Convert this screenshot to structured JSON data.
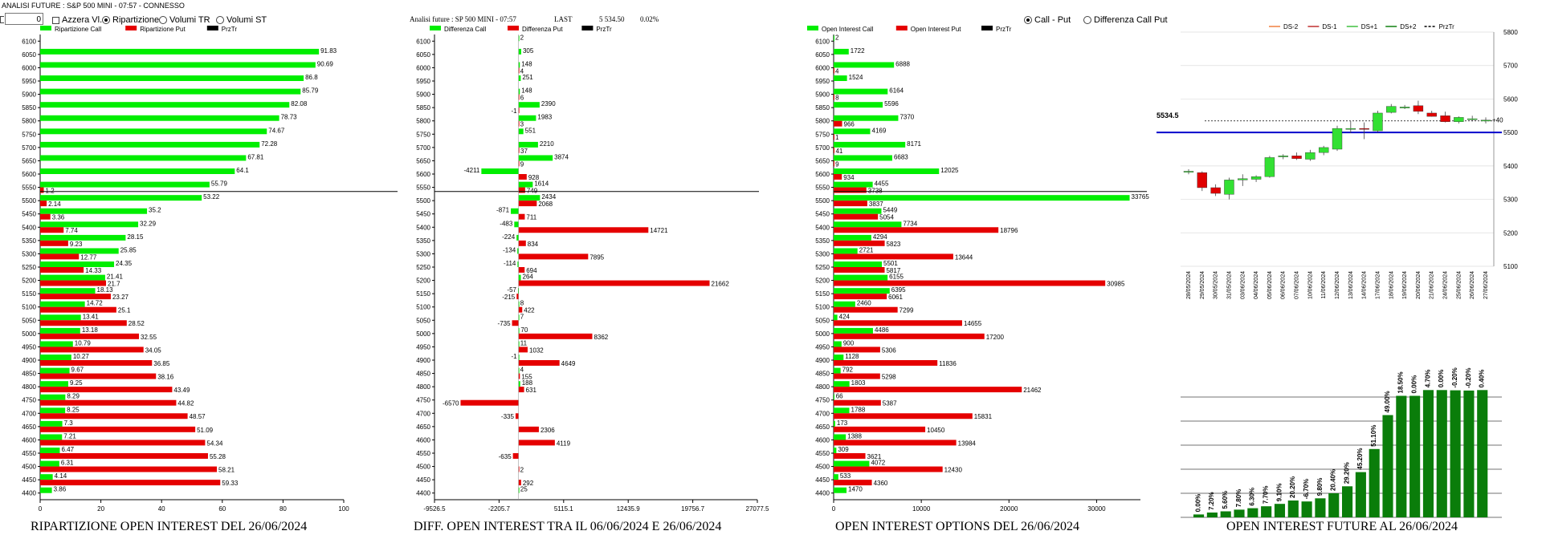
{
  "window": {
    "title": "ANALISI FUTURE : S&P 500 MINI - 07:57 - CONNESSO"
  },
  "controls": {
    "number_value": "0",
    "checkbox_label": "Azzera Vl.",
    "radios": [
      {
        "label": "Ripartizione",
        "selected": true
      },
      {
        "label": "Volumi TR",
        "selected": false
      },
      {
        "label": "Volumi ST",
        "selected": false
      }
    ]
  },
  "panel2": {
    "header_label": "Analisi future : SP 500 MINI - 07:57",
    "last_label": "LAST",
    "last_value": "5 534.50",
    "change": "0.02%"
  },
  "panel3": {
    "radios": [
      {
        "label": "Call - Put",
        "selected": true
      },
      {
        "label": "Differenza Call Put",
        "selected": false
      }
    ]
  },
  "titles": {
    "p1": "RIPARTIZIONE OPEN INTEREST DEL 26/06/2024",
    "p2": "DIFF. OPEN INTEREST TRA IL 06/06/2024 E 26/06/2024",
    "p3": "OPEN INTEREST OPTIONS DEL 26/06/2024",
    "p4": "OPEN INTEREST FUTURE AL 26/06/2024"
  },
  "colors": {
    "call": "#00ee00",
    "put": "#e50000",
    "price": "#000000",
    "dark_green": "#0a7d0a",
    "blue_line": "#0000cc"
  },
  "chart_data": [
    {
      "type": "bar",
      "orientation": "horizontal",
      "legend": [
        "Ripartizione Call",
        "Ripartizione Put",
        "PrzTr"
      ],
      "strikes": [
        6100,
        6050,
        6000,
        5950,
        5900,
        5850,
        5800,
        5750,
        5700,
        5650,
        5600,
        5550,
        5500,
        5450,
        5400,
        5350,
        5300,
        5250,
        5200,
        5150,
        5100,
        5050,
        5000,
        4950,
        4900,
        4850,
        4800,
        4750,
        4700,
        4650,
        4600,
        4550,
        4500,
        4450,
        4400
      ],
      "series": [
        {
          "name": "Ripartizione Call",
          "values": [
            null,
            91.83,
            90.69,
            86.8,
            85.79,
            82.08,
            78.73,
            74.67,
            72.28,
            67.81,
            64.1,
            55.79,
            53.22,
            35.2,
            32.29,
            28.15,
            25.85,
            24.35,
            21.41,
            18.13,
            14.72,
            13.41,
            13.18,
            10.79,
            10.27,
            9.67,
            9.25,
            8.29,
            8.25,
            7.3,
            7.21,
            6.47,
            6.31,
            4.14,
            3.86
          ]
        },
        {
          "name": "Ripartizione Put",
          "values": [
            null,
            null,
            null,
            null,
            null,
            null,
            null,
            null,
            null,
            null,
            null,
            1.2,
            2.14,
            3.36,
            7.74,
            9.23,
            12.77,
            14.33,
            21.7,
            23.27,
            25.1,
            28.52,
            32.55,
            34.05,
            36.85,
            38.16,
            43.49,
            44.82,
            48.57,
            51.09,
            54.34,
            55.28,
            58.21,
            59.33,
            null
          ]
        }
      ],
      "price_level": 5534.5,
      "xlim": [
        0,
        100
      ],
      "xticks": [
        "0",
        "20",
        "40",
        "60",
        "80",
        "100"
      ]
    },
    {
      "type": "bar",
      "orientation": "horizontal",
      "legend": [
        "Differenza Call",
        "Differenza Put",
        "PrzTr"
      ],
      "strikes": [
        6100,
        6050,
        6000,
        5950,
        5900,
        5850,
        5800,
        5750,
        5700,
        5650,
        5600,
        5550,
        5500,
        5450,
        5400,
        5350,
        5300,
        5250,
        5200,
        5150,
        5100,
        5050,
        5000,
        4950,
        4900,
        4850,
        4800,
        4750,
        4700,
        4650,
        4600,
        4550,
        4500,
        4450,
        4400
      ],
      "series": [
        {
          "name": "Differenza Call",
          "values": [
            2,
            305,
            148,
            251,
            148,
            2390,
            1983,
            551,
            2210,
            3874,
            -4211,
            1614,
            2434,
            -871,
            -483,
            -224,
            -134,
            -114,
            264,
            -57,
            8,
            7,
            70,
            11,
            -1,
            4,
            188,
            null,
            null,
            null,
            null,
            null,
            null,
            null,
            25
          ]
        },
        {
          "name": "Differenza Put",
          "values": [
            null,
            null,
            4,
            null,
            6,
            -1,
            3,
            null,
            37,
            9,
            928,
            749,
            2068,
            711,
            14721,
            834,
            7895,
            694,
            21662,
            -215,
            422,
            -735,
            8362,
            1032,
            4649,
            155,
            631,
            -6570,
            -335,
            2306,
            4119,
            -635,
            2,
            292,
            null
          ]
        }
      ],
      "price_level": 5534.5,
      "xlim": [
        -9526.5,
        27077.5
      ],
      "xticks": [
        "-9526.5",
        "-2205.7",
        "5115.1",
        "12435.9",
        "19756.7",
        "27077.5"
      ]
    },
    {
      "type": "bar",
      "orientation": "horizontal",
      "legend": [
        "Open Interest Call",
        "Open Interest Put",
        "PrzTr"
      ],
      "strikes": [
        6100,
        6050,
        6000,
        5950,
        5900,
        5850,
        5800,
        5750,
        5700,
        5650,
        5600,
        5550,
        5500,
        5450,
        5400,
        5350,
        5300,
        5250,
        5200,
        5150,
        5100,
        5050,
        5000,
        4950,
        4900,
        4850,
        4800,
        4750,
        4700,
        4650,
        4600,
        4550,
        4500,
        4450,
        4400
      ],
      "series": [
        {
          "name": "Open Interest Call",
          "values": [
            2,
            1722,
            6888,
            1524,
            6164,
            5596,
            7370,
            4169,
            8171,
            6683,
            12025,
            4455,
            33765,
            5449,
            7734,
            4294,
            2721,
            5501,
            6155,
            6395,
            2460,
            424,
            4486,
            900,
            1128,
            792,
            1803,
            66,
            1788,
            173,
            1388,
            309,
            4072,
            533,
            1470
          ]
        },
        {
          "name": "Open Interest Put",
          "values": [
            null,
            null,
            4,
            null,
            8,
            null,
            966,
            1,
            41,
            9,
            934,
            3738,
            3837,
            5054,
            18796,
            5823,
            13644,
            5817,
            30985,
            6061,
            7299,
            14655,
            17200,
            5306,
            11836,
            5298,
            21462,
            5387,
            15831,
            10450,
            13984,
            3621,
            12430,
            4360,
            null
          ]
        }
      ],
      "price_level": 5534.5,
      "xlim": [
        0,
        35000
      ],
      "xticks": [
        "0",
        "10000",
        "20000",
        "30000"
      ]
    },
    {
      "type": "candlestick",
      "legend": [
        "DS-2",
        "DS-1",
        "DS+1",
        "DS+2",
        "PrzTr"
      ],
      "dates": [
        "28/05/2024",
        "29/05/2024",
        "30/05/2024",
        "31/05/2024",
        "03/06/2024",
        "04/06/2024",
        "05/06/2024",
        "06/06/2024",
        "07/06/2024",
        "10/06/2024",
        "11/06/2024",
        "12/06/2024",
        "13/06/2024",
        "14/06/2024",
        "17/06/2024",
        "18/06/2024",
        "19/06/2024",
        "20/06/2024",
        "21/06/2024",
        "24/06/2024",
        "25/06/2024",
        "26/06/2024",
        "27/06/2024"
      ],
      "ohlc": [
        [
          5382,
          5390,
          5375,
          5384
        ],
        [
          5380,
          5384,
          5325,
          5335
        ],
        [
          5335,
          5345,
          5310,
          5318
        ],
        [
          5315,
          5365,
          5300,
          5358
        ],
        [
          5358,
          5375,
          5340,
          5362
        ],
        [
          5360,
          5372,
          5352,
          5368
        ],
        [
          5368,
          5430,
          5365,
          5425
        ],
        [
          5428,
          5435,
          5420,
          5430
        ],
        [
          5430,
          5440,
          5418,
          5422
        ],
        [
          5420,
          5448,
          5415,
          5440
        ],
        [
          5440,
          5460,
          5432,
          5455
        ],
        [
          5450,
          5520,
          5445,
          5512
        ],
        [
          5512,
          5535,
          5498,
          5512
        ],
        [
          5512,
          5530,
          5480,
          5510
        ],
        [
          5505,
          5565,
          5500,
          5558
        ],
        [
          5560,
          5585,
          5557,
          5578
        ],
        [
          5576,
          5582,
          5570,
          5576
        ],
        [
          5580,
          5595,
          5555,
          5563
        ],
        [
          5558,
          5565,
          5547,
          5548
        ],
        [
          5550,
          5562,
          5530,
          5532
        ],
        [
          5532,
          5548,
          5527,
          5545
        ],
        [
          5540,
          5550,
          5533,
          5541
        ],
        [
          5537,
          5545,
          5527,
          5537
        ]
      ],
      "current_price": "5534.5",
      "last_label": "+40",
      "level_line": 5500,
      "ylim": [
        5100,
        5800
      ],
      "yticks": [
        "5800",
        "5700",
        "5600",
        "5500",
        "5400",
        "5300",
        "5200",
        "5100"
      ]
    },
    {
      "type": "bar",
      "categories": [
        "28/05/2024",
        "29/05/2024",
        "30/05/2024",
        "31/05/2024",
        "03/06/2024",
        "04/06/2024",
        "05/06/2024",
        "06/06/2024",
        "07/06/2024",
        "10/06/2024",
        "11/06/2024",
        "12/06/2024",
        "13/06/2024",
        "14/06/2024",
        "17/06/2024",
        "18/06/2024",
        "19/06/2024",
        "20/06/2024",
        "21/06/2024",
        "24/06/2024",
        "25/06/2024",
        "26/06/2024"
      ],
      "labels": [
        "0.00%",
        "7.20%",
        "5.60%",
        "7.80%",
        "6.30%",
        "7.70%",
        "9.10%",
        "20.20%",
        "-6.70%",
        "9.80%",
        "20.40%",
        "29.20%",
        "45.20%",
        "51.10%",
        "49.00%",
        "18.50%",
        "0.00%",
        "4.70%",
        "0.00%",
        "-0.20%",
        "-0.20%",
        "0.40%"
      ],
      "values": [
        1.2,
        2.0,
        2.5,
        3.2,
        3.8,
        4.6,
        5.6,
        7.0,
        6.6,
        7.9,
        10.0,
        12.9,
        18.8,
        28.4,
        42.5,
        50.5,
        50.5,
        52.9,
        52.9,
        52.8,
        52.7,
        52.9
      ]
    }
  ]
}
